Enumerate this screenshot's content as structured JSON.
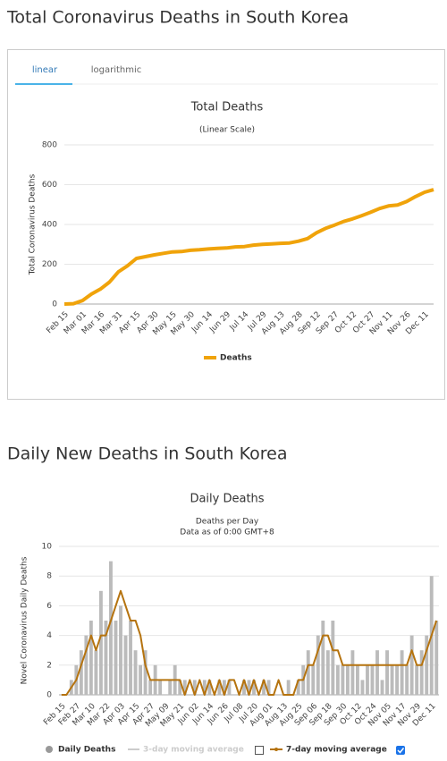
{
  "chart_data": [
    {
      "type": "line",
      "heading": "Total Coronavirus Deaths in South Korea",
      "tabs": [
        "linear",
        "logarithmic"
      ],
      "title": "Total Deaths",
      "subtitle": "(Linear Scale)",
      "y_label": "Total Coronavirus Deaths",
      "categories": [
        "Feb 15",
        null,
        "Mar 01",
        null,
        "Mar 16",
        null,
        "Mar 31",
        null,
        "Apr 15",
        null,
        "Apr 30",
        null,
        "May 15",
        null,
        "May 30",
        null,
        "Jun 14",
        null,
        "Jun 29",
        null,
        "Jul 14",
        null,
        "Jul 29",
        null,
        "Aug 13",
        null,
        "Aug 28",
        null,
        "Sep 12",
        null,
        "Sep 27",
        null,
        "Oct 12",
        null,
        "Oct 27",
        null,
        "Nov 11",
        null,
        "Nov 26",
        null,
        "Dec 11",
        null
      ],
      "series": [
        {
          "name": "Deaths",
          "color": "#f0a30a",
          "values": [
            0,
            2,
            17,
            50,
            75,
            110,
            162,
            192,
            229,
            238,
            247,
            255,
            262,
            264,
            270,
            273,
            277,
            280,
            282,
            287,
            289,
            296,
            300,
            302,
            305,
            307,
            316,
            329,
            358,
            380,
            397,
            415,
            428,
            444,
            461,
            480,
            493,
            498,
            515,
            540,
            562,
            575
          ]
        }
      ],
      "ylim": [
        0,
        800
      ],
      "yticks": [
        0,
        200,
        400,
        600,
        800
      ],
      "grid": true
    },
    {
      "type": "bar",
      "heading": "Daily New Deaths in South Korea",
      "title": "Daily Deaths",
      "subtitle": "Deaths per Day",
      "note": "Data as of 0:00 GMT+8",
      "y_label": "Novel Coronavirus Daily Deaths",
      "hidden_series": "3-day moving average",
      "categories": [
        "Feb 15",
        null,
        null,
        "Feb 27",
        null,
        null,
        "Mar 10",
        null,
        null,
        "Mar 22",
        null,
        null,
        "Apr 03",
        null,
        null,
        "Apr 15",
        null,
        null,
        "Apr 27",
        null,
        null,
        "May 09",
        null,
        null,
        "May 21",
        null,
        null,
        "Jun 02",
        null,
        null,
        "Jun 14",
        null,
        null,
        "Jun 26",
        null,
        null,
        "Jul 08",
        null,
        null,
        "Jul 20",
        null,
        null,
        "Aug 01",
        null,
        null,
        "Aug 13",
        null,
        null,
        "Aug 25",
        null,
        null,
        "Sep 06",
        null,
        null,
        "Sep 18",
        null,
        null,
        "Sep 30",
        null,
        null,
        "Oct 12",
        null,
        null,
        "Oct 24",
        null,
        null,
        "Nov 05",
        null,
        null,
        "Nov 17",
        null,
        null,
        "Nov 29",
        null,
        null,
        "Dec 11",
        null
      ],
      "series": [
        {
          "name": "Daily Deaths",
          "color": "#bbbbbb",
          "kind": "bar",
          "values": [
            0,
            0,
            1,
            2,
            3,
            4,
            5,
            3,
            7,
            5,
            9,
            5,
            6,
            4,
            5,
            3,
            2,
            3,
            1,
            2,
            1,
            0,
            1,
            2,
            1,
            1,
            0,
            1,
            0,
            1,
            1,
            0,
            1,
            1,
            1,
            0,
            0,
            1,
            1,
            1,
            0,
            1,
            1,
            0,
            0,
            0,
            1,
            0,
            1,
            2,
            3,
            2,
            4,
            5,
            3,
            5,
            2,
            2,
            2,
            3,
            2,
            1,
            2,
            2,
            3,
            1,
            3,
            2,
            2,
            3,
            2,
            4,
            2,
            3,
            4,
            8,
            5
          ]
        },
        {
          "name": "7-day moving average",
          "color": "#b5730f",
          "kind": "line",
          "values": [
            0,
            0,
            0.5,
            1,
            2,
            3,
            4,
            3,
            4,
            4,
            5,
            6,
            7,
            6,
            5,
            5,
            4,
            2,
            1,
            1,
            1,
            1,
            1,
            1,
            1,
            0,
            1,
            0,
            1,
            0,
            1,
            0,
            1,
            0,
            1,
            1,
            0,
            1,
            0,
            1,
            0,
            1,
            0,
            0,
            1,
            0,
            0,
            0,
            1,
            1,
            2,
            2,
            3,
            4,
            4,
            3,
            3,
            2,
            2,
            2,
            2,
            2,
            2,
            2,
            2,
            2,
            2,
            2,
            2,
            2,
            2,
            3,
            2,
            2,
            3,
            4,
            5
          ]
        }
      ],
      "ylim": [
        0,
        10
      ],
      "yticks": [
        0,
        2,
        4,
        6,
        8,
        10
      ],
      "grid": true
    }
  ]
}
